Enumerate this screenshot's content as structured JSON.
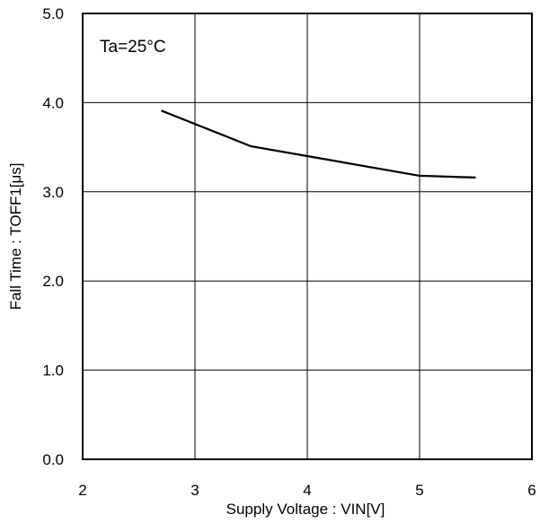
{
  "chart_data": {
    "type": "line",
    "title": "",
    "xlabel": "Supply Voltage : VIN[V]",
    "ylabel": "Fall Time : TOFF1[μs]",
    "xlim": [
      2,
      6
    ],
    "ylim": [
      0.0,
      5.0
    ],
    "x_ticks": [
      "2",
      "3",
      "4",
      "5",
      "6"
    ],
    "y_ticks": [
      "0.0",
      "1.0",
      "2.0",
      "3.0",
      "4.0",
      "5.0"
    ],
    "grid": true,
    "annotation": "Ta=25°C",
    "series": [
      {
        "x": [
          2.7,
          3.5,
          4.0,
          5.0,
          5.5
        ],
        "y": [
          3.91,
          3.51,
          3.4,
          3.18,
          3.16
        ]
      }
    ]
  },
  "colors": {
    "line": "#000000",
    "grid": "#000000",
    "background": "#ffffff"
  }
}
